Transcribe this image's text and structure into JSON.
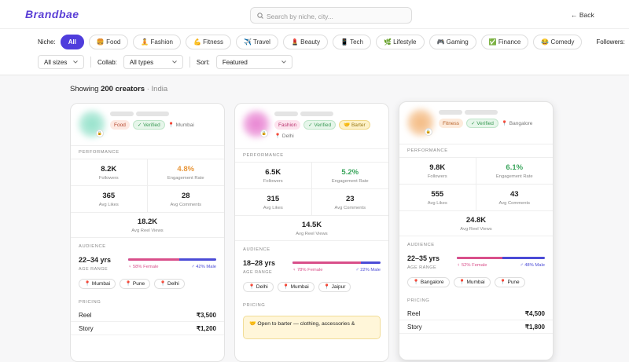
{
  "header": {
    "logo": "Brandbae",
    "search_placeholder": "Search by niche, city...",
    "back": "← Back"
  },
  "filters": {
    "niche_label": "Niche:",
    "niches": [
      "All",
      "🍔 Food",
      "🧘 Fashion",
      "💪 Fitness",
      "✈️ Travel",
      "💄 Beauty",
      "📱 Tech",
      "🌿 Lifestyle",
      "🎮 Gaming",
      "✅ Finance",
      "😂 Comedy"
    ],
    "active_niche": 0,
    "followers_label": "Followers:",
    "sizes": "All sizes",
    "collab_label": "Collab:",
    "collab": "All types",
    "sort_label": "Sort:",
    "sort": "Featured"
  },
  "summary": {
    "prefix": "Showing",
    "count": "200 creators",
    "location": "· India"
  },
  "cards": [
    {
      "niche": "Food",
      "niche_bg": "#fde9e2",
      "niche_color": "#b4462c",
      "avatar": "#8fe0c8",
      "verified": "✓ Verified",
      "location": "📍 Mumbai",
      "performance_label": "PERFORMANCE",
      "metrics": [
        {
          "value": "8.2K",
          "label": "Followers"
        },
        {
          "value": "4.8%",
          "label": "Engagement Rate",
          "color": "#e8963a"
        },
        {
          "value": "365",
          "label": "Avg Likes"
        },
        {
          "value": "28",
          "label": "Avg Comments"
        },
        {
          "value": "18.2K",
          "label": "Avg Reel Views"
        }
      ],
      "audience_label": "AUDIENCE",
      "age": "22–34 yrs",
      "age_label": "AGE RANGE",
      "female_share": 58,
      "female": "♀ 58% Female",
      "male": "♂ 42% Male",
      "cities": [
        "📍 Mumbai",
        "📍 Pune",
        "📍 Delhi"
      ],
      "pricing_label": "PRICING",
      "pricing": [
        {
          "name": "Reel",
          "price": "₹3,500"
        },
        {
          "name": "Story",
          "price": "₹1,200"
        }
      ]
    },
    {
      "niche": "Fashion",
      "niche_bg": "#fde3ee",
      "niche_color": "#b8336f",
      "avatar": "#e77ccf",
      "verified": "✓ Verified",
      "barter": "🤝 Barter",
      "location": "📍 Delhi",
      "performance_label": "PERFORMANCE",
      "metrics": [
        {
          "value": "6.5K",
          "label": "Followers"
        },
        {
          "value": "5.2%",
          "label": "Engagement Rate",
          "color": "#3aa55c"
        },
        {
          "value": "315",
          "label": "Avg Likes"
        },
        {
          "value": "23",
          "label": "Avg Comments"
        },
        {
          "value": "14.5K",
          "label": "Avg Reel Views"
        }
      ],
      "audience_label": "AUDIENCE",
      "age": "18–28 yrs",
      "age_label": "AGE RANGE",
      "female_share": 78,
      "female": "♀ 78% Female",
      "male": "♂ 22% Male",
      "cities": [
        "📍 Delhi",
        "📍 Mumbai",
        "📍 Jaipur"
      ],
      "pricing_label": "PRICING",
      "barter_note": "🤝 Open to barter — clothing, accessories &"
    },
    {
      "niche": "Fitness",
      "niche_bg": "#fdebdc",
      "niche_color": "#b8632a",
      "avatar": "#f3b67a",
      "verified": "✓ Verified",
      "location": "📍 Bangalore",
      "performance_label": "PERFORMANCE",
      "metrics": [
        {
          "value": "9.8K",
          "label": "Followers"
        },
        {
          "value": "6.1%",
          "label": "Engagement Rate",
          "color": "#3aa55c"
        },
        {
          "value": "555",
          "label": "Avg Likes"
        },
        {
          "value": "43",
          "label": "Avg Comments"
        },
        {
          "value": "24.8K",
          "label": "Avg Reel Views"
        }
      ],
      "audience_label": "AUDIENCE",
      "age": "22–35 yrs",
      "age_label": "AGE RANGE",
      "female_share": 52,
      "female": "♀ 52% Female",
      "male": "♂ 48% Male",
      "cities": [
        "📍 Bangalore",
        "📍 Mumbai",
        "📍 Pune"
      ],
      "pricing_label": "PRICING",
      "pricing": [
        {
          "name": "Reel",
          "price": "₹4,500"
        },
        {
          "name": "Story",
          "price": "₹1,800"
        }
      ]
    }
  ]
}
